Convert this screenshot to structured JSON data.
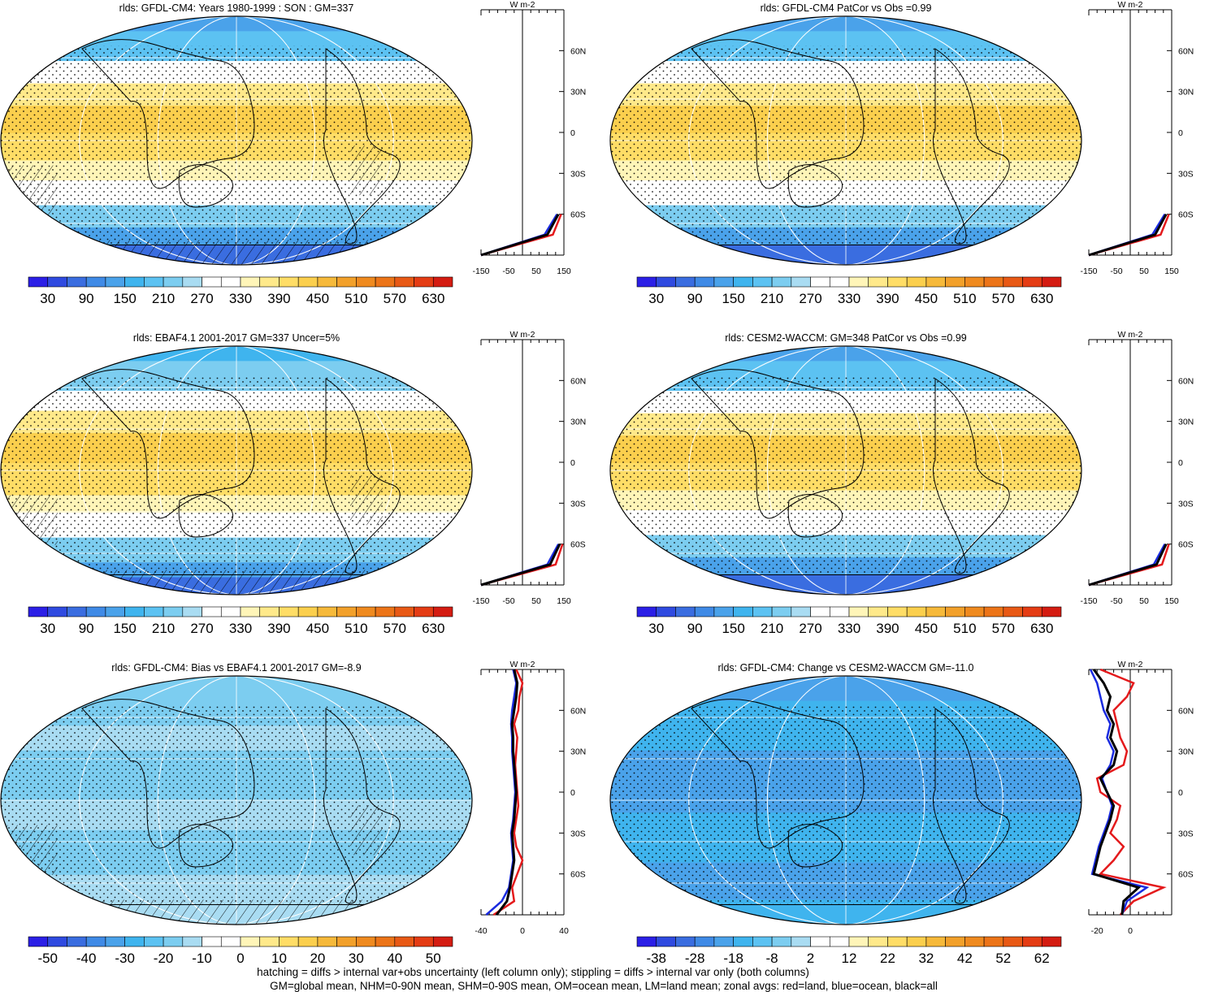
{
  "colors": {
    "positive_scale": [
      "#2b1fe6",
      "#2f4ae0",
      "#3a6de0",
      "#3f8ae6",
      "#4aa2ea",
      "#3fb4ee",
      "#5cc2f2",
      "#7ccdf0",
      "#a9dcf2",
      "#ffffff",
      "#ffffff",
      "#fff5b8",
      "#ffe98a",
      "#ffdd66",
      "#fbcf4d",
      "#f6b93a",
      "#f2a02a",
      "#ef8a1f",
      "#ec7418",
      "#e85915",
      "#e43c14",
      "#d41c12"
    ],
    "land_line": "#e41a1c",
    "ocean_line": "#1a2be0",
    "all_line": "#000000"
  },
  "panels": [
    {
      "title": "rlds: GFDL-CM4: Years 1980-1999 : SON : GM=337",
      "colorbar_labels": [
        "30",
        "90",
        "150",
        "210",
        "270",
        "330",
        "390",
        "450",
        "510",
        "570",
        "630"
      ],
      "zonal_xticks": [
        "-150",
        "-50",
        "50",
        "150"
      ],
      "zonal_lat_labels": [
        "60N",
        "30N",
        "0",
        "30S",
        "60S"
      ],
      "zonal_unit": "W m-2"
    },
    {
      "title": "rlds: GFDL-CM4 PatCor vs Obs =0.99",
      "colorbar_labels": [
        "30",
        "90",
        "150",
        "210",
        "270",
        "330",
        "390",
        "450",
        "510",
        "570",
        "630"
      ],
      "zonal_xticks": [
        "-150",
        "-50",
        "50",
        "150"
      ],
      "zonal_lat_labels": [
        "60N",
        "30N",
        "0",
        "30S",
        "60S"
      ],
      "zonal_unit": "W m-2"
    },
    {
      "title": "rlds: EBAF4.1 2001-2017 GM=337 Uncer=5%",
      "colorbar_labels": [
        "30",
        "90",
        "150",
        "210",
        "270",
        "330",
        "390",
        "450",
        "510",
        "570",
        "630"
      ],
      "zonal_xticks": [
        "-150",
        "-50",
        "50",
        "150"
      ],
      "zonal_lat_labels": [
        "60N",
        "30N",
        "0",
        "30S",
        "60S"
      ],
      "zonal_unit": "W m-2"
    },
    {
      "title": "rlds: CESM2-WACCM: GM=348 PatCor vs Obs =0.99",
      "colorbar_labels": [
        "30",
        "90",
        "150",
        "210",
        "270",
        "330",
        "390",
        "450",
        "510",
        "570",
        "630"
      ],
      "zonal_xticks": [
        "-150",
        "-50",
        "50",
        "150"
      ],
      "zonal_lat_labels": [
        "60N",
        "30N",
        "0",
        "30S",
        "60S"
      ],
      "zonal_unit": "W m-2"
    },
    {
      "title": "rlds: GFDL-CM4: Bias vs EBAF4.1 2001-2017  GM=-8.9",
      "colorbar_labels": [
        "-50",
        "-40",
        "-30",
        "-20",
        "-10",
        "0",
        "10",
        "20",
        "30",
        "40",
        "50"
      ],
      "zonal_xticks": [
        "-40",
        "0",
        "40"
      ],
      "zonal_lat_labels": [
        "60N",
        "30N",
        "0",
        "30S",
        "60S"
      ],
      "zonal_unit": "W m-2"
    },
    {
      "title": "rlds: GFDL-CM4: Change vs CESM2-WACCM GM=-11.0",
      "colorbar_labels": [
        "-38",
        "-28",
        "-18",
        "-8",
        "2",
        "12",
        "22",
        "32",
        "42",
        "52",
        "62"
      ],
      "zonal_xticks": [
        "-20",
        "0"
      ],
      "zonal_lat_labels": [
        "60N",
        "30N",
        "0",
        "30S",
        "60S"
      ],
      "zonal_unit": "W m-2"
    }
  ],
  "footer": {
    "line1": "hatching = diffs > internal var+obs uncertainty (left column only); stippling = diffs > internal var only (both columns)",
    "line2": "GM=global mean, NHM=0-90N mean, SHM=0-90S mean, OM=ocean mean, LM=land mean; zonal avgs: red=land, blue=ocean, black=all"
  },
  "chart_data": [
    {
      "type": "heatmap",
      "title": "rlds: GFDL-CM4: Years 1980-1999 : SON : GM=337",
      "colorbar_ticks": [
        30,
        90,
        150,
        210,
        270,
        330,
        390,
        450,
        510,
        570,
        630
      ],
      "zonal": {
        "xlim": [
          -150,
          150
        ],
        "lat": [
          -90,
          -75,
          -60
        ],
        "all": [
          -150,
          90,
          130
        ],
        "land": [
          -150,
          110,
          140
        ],
        "ocean": [
          -150,
          80,
          125
        ]
      }
    },
    {
      "type": "heatmap",
      "title": "rlds: GFDL-CM4 PatCor vs Obs =0.99",
      "colorbar_ticks": [
        30,
        90,
        150,
        210,
        270,
        330,
        390,
        450,
        510,
        570,
        630
      ],
      "zonal": {
        "xlim": [
          -150,
          150
        ],
        "lat": [
          -90,
          -75,
          -60
        ],
        "all": [
          -150,
          90,
          130
        ],
        "land": [
          -150,
          110,
          140
        ],
        "ocean": [
          -150,
          80,
          125
        ]
      }
    },
    {
      "type": "heatmap",
      "title": "rlds: EBAF4.1 2001-2017 GM=337 Uncer=5%",
      "colorbar_ticks": [
        30,
        90,
        150,
        210,
        270,
        330,
        390,
        450,
        510,
        570,
        630
      ],
      "zonal": {
        "xlim": [
          -150,
          150
        ],
        "lat": [
          -90,
          -75,
          -60
        ],
        "all": [
          -150,
          100,
          135
        ],
        "land": [
          -150,
          120,
          145
        ],
        "ocean": [
          -150,
          90,
          130
        ]
      }
    },
    {
      "type": "heatmap",
      "title": "rlds: CESM2-WACCM: GM=348 PatCor vs Obs =0.99",
      "colorbar_ticks": [
        30,
        90,
        150,
        210,
        270,
        330,
        390,
        450,
        510,
        570,
        630
      ],
      "zonal": {
        "xlim": [
          -150,
          150
        ],
        "lat": [
          -90,
          -75,
          -60
        ],
        "all": [
          -150,
          95,
          130
        ],
        "land": [
          -150,
          115,
          140
        ],
        "ocean": [
          -150,
          85,
          125
        ]
      }
    },
    {
      "type": "heatmap",
      "title": "rlds: GFDL-CM4: Bias vs EBAF4.1 2001-2017  GM=-8.9",
      "colorbar_ticks": [
        -50,
        -40,
        -30,
        -20,
        -10,
        0,
        10,
        20,
        30,
        40,
        50
      ],
      "zonal": {
        "xlim": [
          -40,
          40
        ],
        "lat": [
          -90,
          -80,
          -70,
          -60,
          -50,
          -40,
          -30,
          -20,
          -10,
          0,
          10,
          20,
          30,
          40,
          50,
          60,
          70,
          80,
          90
        ],
        "all": [
          -25,
          -15,
          -12,
          -10,
          -8,
          -9,
          -10,
          -8,
          -7,
          -6,
          -7,
          -8,
          -9,
          -9,
          -10,
          -8,
          -6,
          -5,
          -8
        ],
        "land": [
          -28,
          -8,
          -10,
          -5,
          0,
          -6,
          -8,
          -6,
          -4,
          -5,
          -6,
          -7,
          -6,
          -5,
          -8,
          -4,
          -3,
          0,
          -6
        ],
        "ocean": [
          -35,
          -20,
          -13,
          -11,
          -9,
          -10,
          -11,
          -9,
          -8,
          -7,
          -8,
          -9,
          -10,
          -10,
          -11,
          -10,
          -8,
          -6,
          -9
        ]
      }
    },
    {
      "type": "heatmap",
      "title": "rlds: GFDL-CM4: Change vs CESM2-WACCM GM=-11.0",
      "colorbar_ticks": [
        -38,
        -28,
        -18,
        -8,
        2,
        12,
        22,
        32,
        42,
        52,
        62
      ],
      "zonal": {
        "xlim": [
          -25,
          25
        ],
        "lat": [
          -90,
          -80,
          -70,
          -60,
          -50,
          -40,
          -30,
          -20,
          -10,
          0,
          10,
          20,
          30,
          40,
          50,
          60,
          70,
          80,
          90
        ],
        "all": [
          -5,
          -4,
          5,
          -22,
          -20,
          -18,
          -15,
          -12,
          -10,
          -14,
          -18,
          -10,
          -8,
          -12,
          -10,
          -14,
          -12,
          -16,
          -22
        ],
        "land": [
          -6,
          2,
          20,
          -18,
          -10,
          -4,
          -12,
          -8,
          -6,
          -18,
          -20,
          -4,
          -2,
          -6,
          -8,
          -10,
          -2,
          2,
          -18
        ],
        "ocean": [
          -5,
          -2,
          10,
          -23,
          -21,
          -19,
          -16,
          -13,
          -11,
          -14,
          -17,
          -12,
          -10,
          -14,
          -12,
          -16,
          -18,
          -20,
          -24
        ]
      }
    }
  ]
}
